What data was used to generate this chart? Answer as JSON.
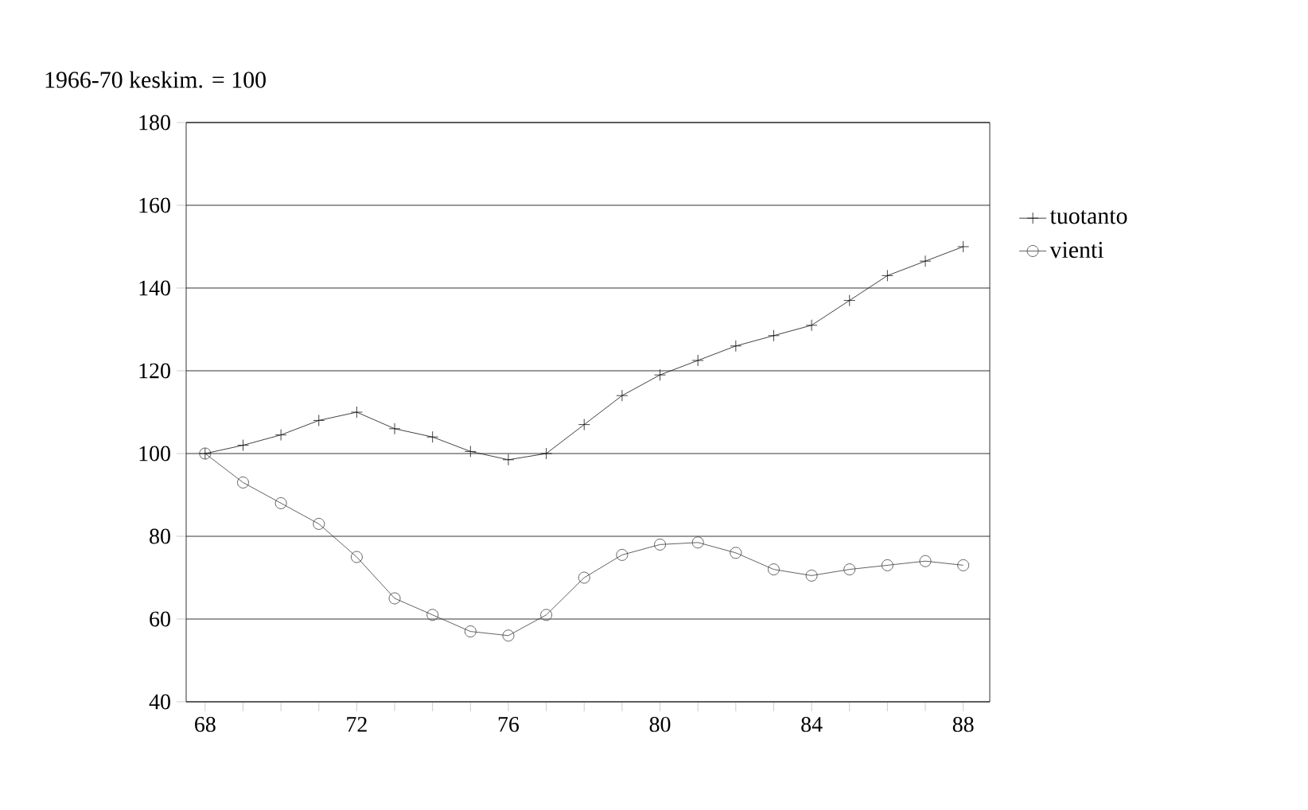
{
  "chart_data": {
    "type": "line",
    "title": "1966-70 keskim. = 100",
    "x": [
      68,
      69,
      70,
      71,
      72,
      73,
      74,
      75,
      76,
      77,
      78,
      79,
      80,
      81,
      82,
      83,
      84,
      85,
      86,
      87,
      88
    ],
    "series": [
      {
        "name": "tuotanto",
        "color": "#111111",
        "marker": "cross",
        "values": [
          100,
          102,
          104.5,
          108,
          110,
          106,
          104,
          100.5,
          98.5,
          100,
          107,
          114,
          119,
          122.5,
          126,
          128.5,
          131,
          137,
          143,
          146.5,
          150
        ]
      },
      {
        "name": "vienti",
        "color": "#3a3a3a",
        "marker": "circle",
        "values": [
          100,
          93,
          88,
          83,
          75,
          65,
          61,
          57,
          56,
          61,
          70,
          75.5,
          78,
          78.5,
          76,
          72,
          70.5,
          72,
          73,
          74,
          73
        ]
      }
    ],
    "xlim": [
      67.5,
      88.7
    ],
    "ylim": [
      40,
      180
    ],
    "xticks": [
      68,
      {
        "value": 69,
        "label": null
      },
      {
        "value": 70,
        "label": null
      },
      {
        "value": 71,
        "label": null
      },
      72,
      {
        "value": 73,
        "label": null
      },
      {
        "value": 74,
        "label": null
      },
      {
        "value": 75,
        "label": null
      },
      76,
      {
        "value": 77,
        "label": null
      },
      {
        "value": 78,
        "label": null
      },
      {
        "value": 79,
        "label": null
      },
      80,
      {
        "value": 81,
        "label": null
      },
      {
        "value": 82,
        "label": null
      },
      {
        "value": 83,
        "label": null
      },
      84,
      {
        "value": 85,
        "label": null
      },
      {
        "value": 86,
        "label": null
      },
      {
        "value": 87,
        "label": null
      },
      88
    ],
    "yticks": [
      40,
      60,
      80,
      100,
      120,
      140,
      160,
      180
    ],
    "grid": "y",
    "legend": "right",
    "line_style": "solid"
  }
}
